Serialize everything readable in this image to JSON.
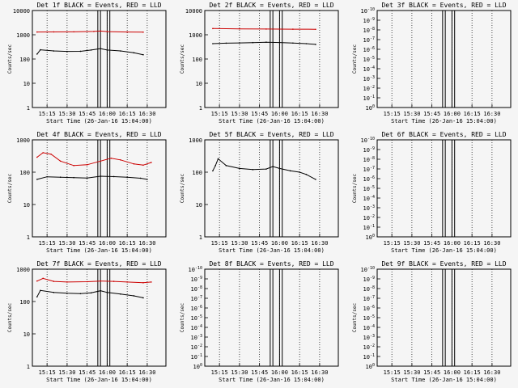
{
  "chart_data": [
    {
      "type": "line",
      "title": "Det 1f BLACK = Events, RED = LLD",
      "xlabel": "Start Time (26-Jan-16 15:04:00)",
      "ylabel": "Counts/sec",
      "x_tick_labels": [
        "15:15",
        "15:30",
        "15:45",
        "16:00",
        "16:15",
        "16:30"
      ],
      "y_scale": "log",
      "ylim": [
        1,
        10000
      ],
      "y_tick_labels": [
        "1",
        "10",
        "100",
        "1000",
        "10000"
      ],
      "series": [
        {
          "color": "#000000",
          "x": [
            "15:07:30",
            "15:10",
            "15:20",
            "15:30",
            "15:40",
            "15:48",
            "15:55",
            "16:00",
            "16:10",
            "16:20",
            "16:27"
          ],
          "y": [
            160,
            240,
            215,
            205,
            208,
            235,
            270,
            235,
            215,
            180,
            150
          ]
        },
        {
          "color": "#cc0000",
          "x": [
            "15:07:30",
            "15:20",
            "15:35",
            "15:50",
            "15:55",
            "16:00",
            "16:15",
            "16:27"
          ],
          "y": [
            1300,
            1310,
            1320,
            1370,
            1420,
            1350,
            1300,
            1280
          ]
        }
      ]
    },
    {
      "type": "line",
      "title": "Det 2f BLACK = Events, RED = LLD",
      "xlabel": "Start Time (26-Jan-16 15:04:00)",
      "ylabel": "Counts/sec",
      "x_tick_labels": [
        "15:15",
        "15:30",
        "15:45",
        "16:00",
        "16:15",
        "16:30"
      ],
      "y_scale": "log",
      "ylim": [
        1,
        10000
      ],
      "y_tick_labels": [
        "1",
        "10",
        "100",
        "1000",
        "10000"
      ],
      "series": [
        {
          "color": "#000000",
          "x": [
            "15:10",
            "15:20",
            "15:30",
            "15:40",
            "15:50",
            "16:00",
            "16:10",
            "16:20",
            "16:27"
          ],
          "y": [
            430,
            450,
            460,
            475,
            495,
            480,
            455,
            430,
            400
          ]
        },
        {
          "color": "#cc0000",
          "x": [
            "15:10",
            "15:30",
            "15:50",
            "16:10",
            "16:27"
          ],
          "y": [
            1800,
            1750,
            1720,
            1700,
            1680
          ]
        }
      ]
    },
    {
      "type": "line",
      "title": "Det 3f BLACK = Events, RED = LLD",
      "xlabel": "Start Time (26-Jan-16 15:04:00)",
      "ylabel": "Counts/sec",
      "x_tick_labels": [
        "15:15",
        "15:30",
        "15:45",
        "16:00",
        "16:15",
        "16:30"
      ],
      "y_scale": "log",
      "ylim": [
        1,
        1e-10
      ],
      "y_tick_labels": [
        "10^0",
        "10^-1",
        "10^-2",
        "10^-3",
        "10^-4",
        "10^-5",
        "10^-6",
        "10^-7",
        "10^-8",
        "10^-9",
        "10^-10"
      ],
      "series": []
    },
    {
      "type": "line",
      "title": "Det 4f BLACK = Events, RED = LLD",
      "xlabel": "Start Time (26-Jan-16 15:04:00)",
      "ylabel": "Counts/sec",
      "x_tick_labels": [
        "15:15",
        "15:30",
        "15:45",
        "16:00",
        "16:15",
        "16:30"
      ],
      "y_scale": "log",
      "ylim": [
        1,
        1000
      ],
      "y_tick_labels": [
        "1",
        "10",
        "100",
        "1000"
      ],
      "series": [
        {
          "color": "#000000",
          "x": [
            "15:07:30",
            "15:15",
            "15:25",
            "15:35",
            "15:45",
            "15:55",
            "16:05",
            "16:15",
            "16:25",
            "16:30"
          ],
          "y": [
            60,
            72,
            70,
            68,
            66,
            75,
            73,
            70,
            65,
            60
          ]
        },
        {
          "color": "#cc0000",
          "x": [
            "15:07:30",
            "15:12",
            "15:18",
            "15:25",
            "15:35",
            "15:45",
            "15:55",
            "16:03",
            "16:10",
            "16:20",
            "16:27",
            "16:33"
          ],
          "y": [
            290,
            400,
            360,
            220,
            160,
            170,
            220,
            270,
            240,
            180,
            165,
            200
          ]
        }
      ]
    },
    {
      "type": "line",
      "title": "Det 5f BLACK = Events, RED = LLD",
      "xlabel": "Start Time (26-Jan-16 15:04:00)",
      "ylabel": "Counts/sec",
      "x_tick_labels": [
        "15:15",
        "15:30",
        "15:45",
        "16:00",
        "16:15",
        "16:30"
      ],
      "y_scale": "log",
      "ylim": [
        1,
        1000
      ],
      "y_tick_labels": [
        "1",
        "10",
        "100",
        "1000"
      ],
      "series": [
        {
          "color": "#000000",
          "x": [
            "15:10",
            "15:12",
            "15:14",
            "15:20",
            "15:30",
            "15:40",
            "15:50",
            "15:55",
            "16:00",
            "16:08",
            "16:15",
            "16:20",
            "16:27"
          ],
          "y": [
            110,
            160,
            260,
            160,
            130,
            120,
            125,
            150,
            130,
            110,
            100,
            85,
            60
          ]
        }
      ]
    },
    {
      "type": "line",
      "title": "Det 6f BLACK = Events, RED = LLD",
      "xlabel": "Start Time (26-Jan-16 15:04:00)",
      "ylabel": "Counts/sec",
      "x_tick_labels": [
        "15:15",
        "15:30",
        "15:45",
        "16:00",
        "16:15",
        "16:30"
      ],
      "y_scale": "log",
      "ylim": [
        1,
        1e-10
      ],
      "y_tick_labels": [
        "10^0",
        "10^-1",
        "10^-2",
        "10^-3",
        "10^-4",
        "10^-5",
        "10^-6",
        "10^-7",
        "10^-8",
        "10^-9",
        "10^-10"
      ],
      "series": []
    },
    {
      "type": "line",
      "title": "Det 7f BLACK = Events, RED = LLD",
      "xlabel": "Start Time (26-Jan-16 15:04:00)",
      "ylabel": "Counts/sec",
      "x_tick_labels": [
        "15:15",
        "15:30",
        "15:45",
        "16:00",
        "16:15",
        "16:30"
      ],
      "y_scale": "log",
      "ylim": [
        1,
        1000
      ],
      "y_tick_labels": [
        "1",
        "10",
        "100",
        "1000"
      ],
      "series": [
        {
          "color": "#000000",
          "x": [
            "15:07:30",
            "15:10",
            "15:20",
            "15:30",
            "15:40",
            "15:48",
            "15:55",
            "16:00",
            "16:10",
            "16:20",
            "16:27"
          ],
          "y": [
            140,
            220,
            190,
            180,
            175,
            185,
            215,
            190,
            170,
            150,
            130
          ]
        },
        {
          "color": "#cc0000",
          "x": [
            "15:07:30",
            "15:12",
            "15:20",
            "15:30",
            "15:45",
            "15:55",
            "16:05",
            "16:15",
            "16:27",
            "16:33"
          ],
          "y": [
            430,
            520,
            420,
            400,
            410,
            430,
            420,
            400,
            380,
            400
          ]
        }
      ]
    },
    {
      "type": "line",
      "title": "Det 8f BLACK = Events, RED = LLD",
      "xlabel": "Start Time (26-Jan-16 15:04:00)",
      "ylabel": "Counts/sec",
      "x_tick_labels": [
        "15:15",
        "15:30",
        "15:45",
        "16:00",
        "16:15",
        "16:30"
      ],
      "y_scale": "log",
      "ylim": [
        1,
        1e-10
      ],
      "y_tick_labels": [
        "10^0",
        "10^-1",
        "10^-2",
        "10^-3",
        "10^-4",
        "10^-5",
        "10^-6",
        "10^-7",
        "10^-8",
        "10^-9",
        "10^-10"
      ],
      "series": []
    },
    {
      "type": "line",
      "title": "Det 9f BLACK = Events, RED = LLD",
      "xlabel": "Start Time (26-Jan-16 15:04:00)",
      "ylabel": "Counts/sec",
      "x_tick_labels": [
        "15:15",
        "15:30",
        "15:45",
        "16:00",
        "16:15",
        "16:30"
      ],
      "y_scale": "log",
      "ylim": [
        1,
        1e-10
      ],
      "y_tick_labels": [
        "10^0",
        "10^-1",
        "10^-2",
        "10^-3",
        "10^-4",
        "10^-5",
        "10^-6",
        "10^-7",
        "10^-8",
        "10^-9",
        "10^-10"
      ],
      "series": []
    }
  ]
}
